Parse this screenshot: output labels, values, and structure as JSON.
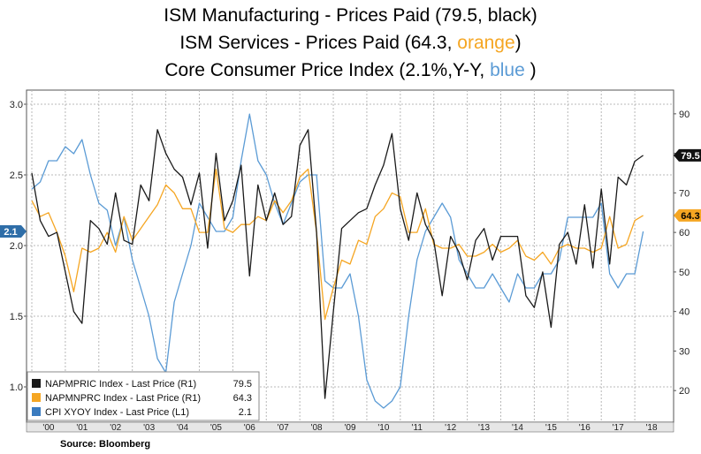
{
  "title": {
    "line1": "ISM Manufacturing  - Prices Paid (79.5, black)",
    "line2a": "ISM Services  - Prices Paid (64.3, ",
    "line2b": "orange",
    "line2c": ")",
    "line3a": "Core Consumer Price Index (2.1%,Y-Y, ",
    "line3b": "blue",
    "line3c": " )"
  },
  "source": "Source: Bloomberg",
  "colors": {
    "black": "#1a1a1a",
    "orange": "#f5a623",
    "blue": "#5b9bd5",
    "legend_blue": "#3a7bbf"
  },
  "chart_data": {
    "type": "line",
    "x_tick_labels": [
      "'00",
      "'01",
      "'02",
      "'03",
      "'04",
      "'05",
      "'06",
      "'07",
      "'08",
      "'09",
      "'10",
      "'11",
      "'12",
      "'13",
      "'14",
      "'15",
      "'16",
      "'17",
      "'18"
    ],
    "left_axis": {
      "range": [
        0.75,
        3.1
      ],
      "ticks": [
        "1.0",
        "1.5",
        "2.0",
        "2.5",
        "3.0"
      ]
    },
    "right_axis": {
      "range": [
        12,
        96
      ],
      "ticks": [
        "20",
        "30",
        "40",
        "50",
        "60",
        "70",
        "80",
        "90"
      ]
    },
    "x_range": [
      2000.0,
      2019.0
    ],
    "last_value_tags": {
      "black": "79.5",
      "orange": "64.3",
      "blue": "2.1"
    },
    "legend": [
      {
        "label": "NAPMPRIC Index - Last Price (R1)",
        "value": "79.5",
        "color": "black"
      },
      {
        "label": "NAPMNPRC Index - Last Price (R1)",
        "value": "64.3",
        "color": "orange"
      },
      {
        "label": "CPI XYOY Index - Last Price (L1)",
        "value": "2.1",
        "color": "legend_blue"
      }
    ],
    "series": [
      {
        "name": "NAPMPRIC Index",
        "axis": "right",
        "color": "black",
        "x": [
          2000.0,
          2000.25,
          2000.5,
          2000.75,
          2001.0,
          2001.25,
          2001.5,
          2001.75,
          2002.0,
          2002.25,
          2002.5,
          2002.75,
          2003.0,
          2003.25,
          2003.5,
          2003.75,
          2004.0,
          2004.25,
          2004.5,
          2004.75,
          2005.0,
          2005.25,
          2005.5,
          2005.75,
          2006.0,
          2006.25,
          2006.5,
          2006.75,
          2007.0,
          2007.25,
          2007.5,
          2007.75,
          2008.0,
          2008.25,
          2008.5,
          2008.75,
          2009.0,
          2009.25,
          2009.5,
          2009.75,
          2010.0,
          2010.25,
          2010.5,
          2010.75,
          2011.0,
          2011.25,
          2011.5,
          2011.75,
          2012.0,
          2012.25,
          2012.5,
          2012.75,
          2013.0,
          2013.25,
          2013.5,
          2013.75,
          2014.0,
          2014.25,
          2014.5,
          2014.75,
          2015.0,
          2015.25,
          2015.5,
          2015.75,
          2016.0,
          2016.25,
          2016.5,
          2016.75,
          2017.0,
          2017.25,
          2017.5,
          2017.75,
          2018.0,
          2018.25
        ],
        "values": [
          75,
          63,
          59,
          60,
          50,
          40,
          37,
          63,
          61,
          57,
          70,
          58,
          57,
          72,
          68,
          86,
          80,
          76,
          74,
          67,
          75,
          56,
          80,
          63,
          68,
          77,
          49,
          72,
          63,
          70,
          62,
          64,
          82,
          86,
          60,
          18,
          40,
          61,
          63,
          65,
          66,
          72,
          77,
          85,
          66,
          58,
          70,
          62,
          58,
          44,
          59,
          55,
          48,
          58,
          61,
          53,
          59,
          59,
          59,
          44,
          41,
          50,
          36,
          57,
          60,
          52,
          67,
          51,
          71,
          52,
          74,
          72,
          78,
          79.5
        ]
      },
      {
        "name": "NAPMNPRC Index",
        "axis": "right",
        "color": "orange",
        "x": [
          2000.0,
          2000.25,
          2000.5,
          2000.75,
          2001.0,
          2001.25,
          2001.5,
          2001.75,
          2002.0,
          2002.25,
          2002.5,
          2002.75,
          2003.0,
          2003.25,
          2003.5,
          2003.75,
          2004.0,
          2004.25,
          2004.5,
          2004.75,
          2005.0,
          2005.25,
          2005.5,
          2005.75,
          2006.0,
          2006.25,
          2006.5,
          2006.75,
          2007.0,
          2007.25,
          2007.5,
          2007.75,
          2008.0,
          2008.25,
          2008.5,
          2008.75,
          2009.0,
          2009.25,
          2009.5,
          2009.75,
          2010.0,
          2010.25,
          2010.5,
          2010.75,
          2011.0,
          2011.25,
          2011.5,
          2011.75,
          2012.0,
          2012.25,
          2012.5,
          2012.75,
          2013.0,
          2013.25,
          2013.5,
          2013.75,
          2014.0,
          2014.25,
          2014.5,
          2014.75,
          2015.0,
          2015.25,
          2015.5,
          2015.75,
          2016.0,
          2016.25,
          2016.5,
          2016.75,
          2017.0,
          2017.25,
          2017.5,
          2017.75,
          2018.0,
          2018.25
        ],
        "values": [
          68,
          64,
          65,
          60,
          54,
          45,
          56,
          55,
          56,
          60,
          55,
          64,
          58,
          61,
          64,
          67,
          72,
          70,
          66,
          66,
          60,
          60,
          76,
          61,
          60,
          62,
          62,
          64,
          63,
          68,
          65,
          68,
          74,
          76,
          60,
          38,
          46,
          53,
          52,
          58,
          57,
          64,
          66,
          70,
          69,
          60,
          60,
          66,
          57,
          56,
          56,
          57,
          54,
          54,
          55,
          57,
          55,
          56,
          58,
          54,
          53,
          55,
          52,
          56,
          57,
          56,
          56,
          55,
          56,
          64,
          56,
          57,
          63,
          64.3
        ]
      },
      {
        "name": "CPI XYOY Index",
        "axis": "left",
        "color": "blue",
        "x": [
          2000.0,
          2000.25,
          2000.5,
          2000.75,
          2001.0,
          2001.25,
          2001.5,
          2001.75,
          2002.0,
          2002.25,
          2002.5,
          2002.75,
          2003.0,
          2003.25,
          2003.5,
          2003.75,
          2004.0,
          2004.25,
          2004.5,
          2004.75,
          2005.0,
          2005.25,
          2005.5,
          2005.75,
          2006.0,
          2006.25,
          2006.5,
          2006.75,
          2007.0,
          2007.25,
          2007.5,
          2007.75,
          2008.0,
          2008.25,
          2008.5,
          2008.75,
          2009.0,
          2009.25,
          2009.5,
          2009.75,
          2010.0,
          2010.25,
          2010.5,
          2010.75,
          2011.0,
          2011.25,
          2011.5,
          2011.75,
          2012.0,
          2012.25,
          2012.5,
          2012.75,
          2013.0,
          2013.25,
          2013.5,
          2013.75,
          2014.0,
          2014.25,
          2014.5,
          2014.75,
          2015.0,
          2015.25,
          2015.5,
          2015.75,
          2016.0,
          2016.25,
          2016.5,
          2016.75,
          2017.0,
          2017.25,
          2017.5,
          2017.75,
          2018.0,
          2018.25
        ],
        "values": [
          2.4,
          2.45,
          2.6,
          2.6,
          2.7,
          2.65,
          2.75,
          2.5,
          2.3,
          2.25,
          2.0,
          2.2,
          1.9,
          1.7,
          1.5,
          1.2,
          1.1,
          1.6,
          1.8,
          2.0,
          2.3,
          2.2,
          2.1,
          2.1,
          2.2,
          2.6,
          2.93,
          2.6,
          2.5,
          2.3,
          2.15,
          2.3,
          2.45,
          2.5,
          2.5,
          1.75,
          1.7,
          1.7,
          1.8,
          1.5,
          1.05,
          0.9,
          0.85,
          0.9,
          1.0,
          1.5,
          1.9,
          2.1,
          2.2,
          2.3,
          2.2,
          1.9,
          1.8,
          1.7,
          1.7,
          1.8,
          1.7,
          1.6,
          1.8,
          1.7,
          1.7,
          1.8,
          1.8,
          1.9,
          2.2,
          2.2,
          2.2,
          2.2,
          2.3,
          1.8,
          1.7,
          1.8,
          1.8,
          2.1
        ]
      }
    ]
  }
}
